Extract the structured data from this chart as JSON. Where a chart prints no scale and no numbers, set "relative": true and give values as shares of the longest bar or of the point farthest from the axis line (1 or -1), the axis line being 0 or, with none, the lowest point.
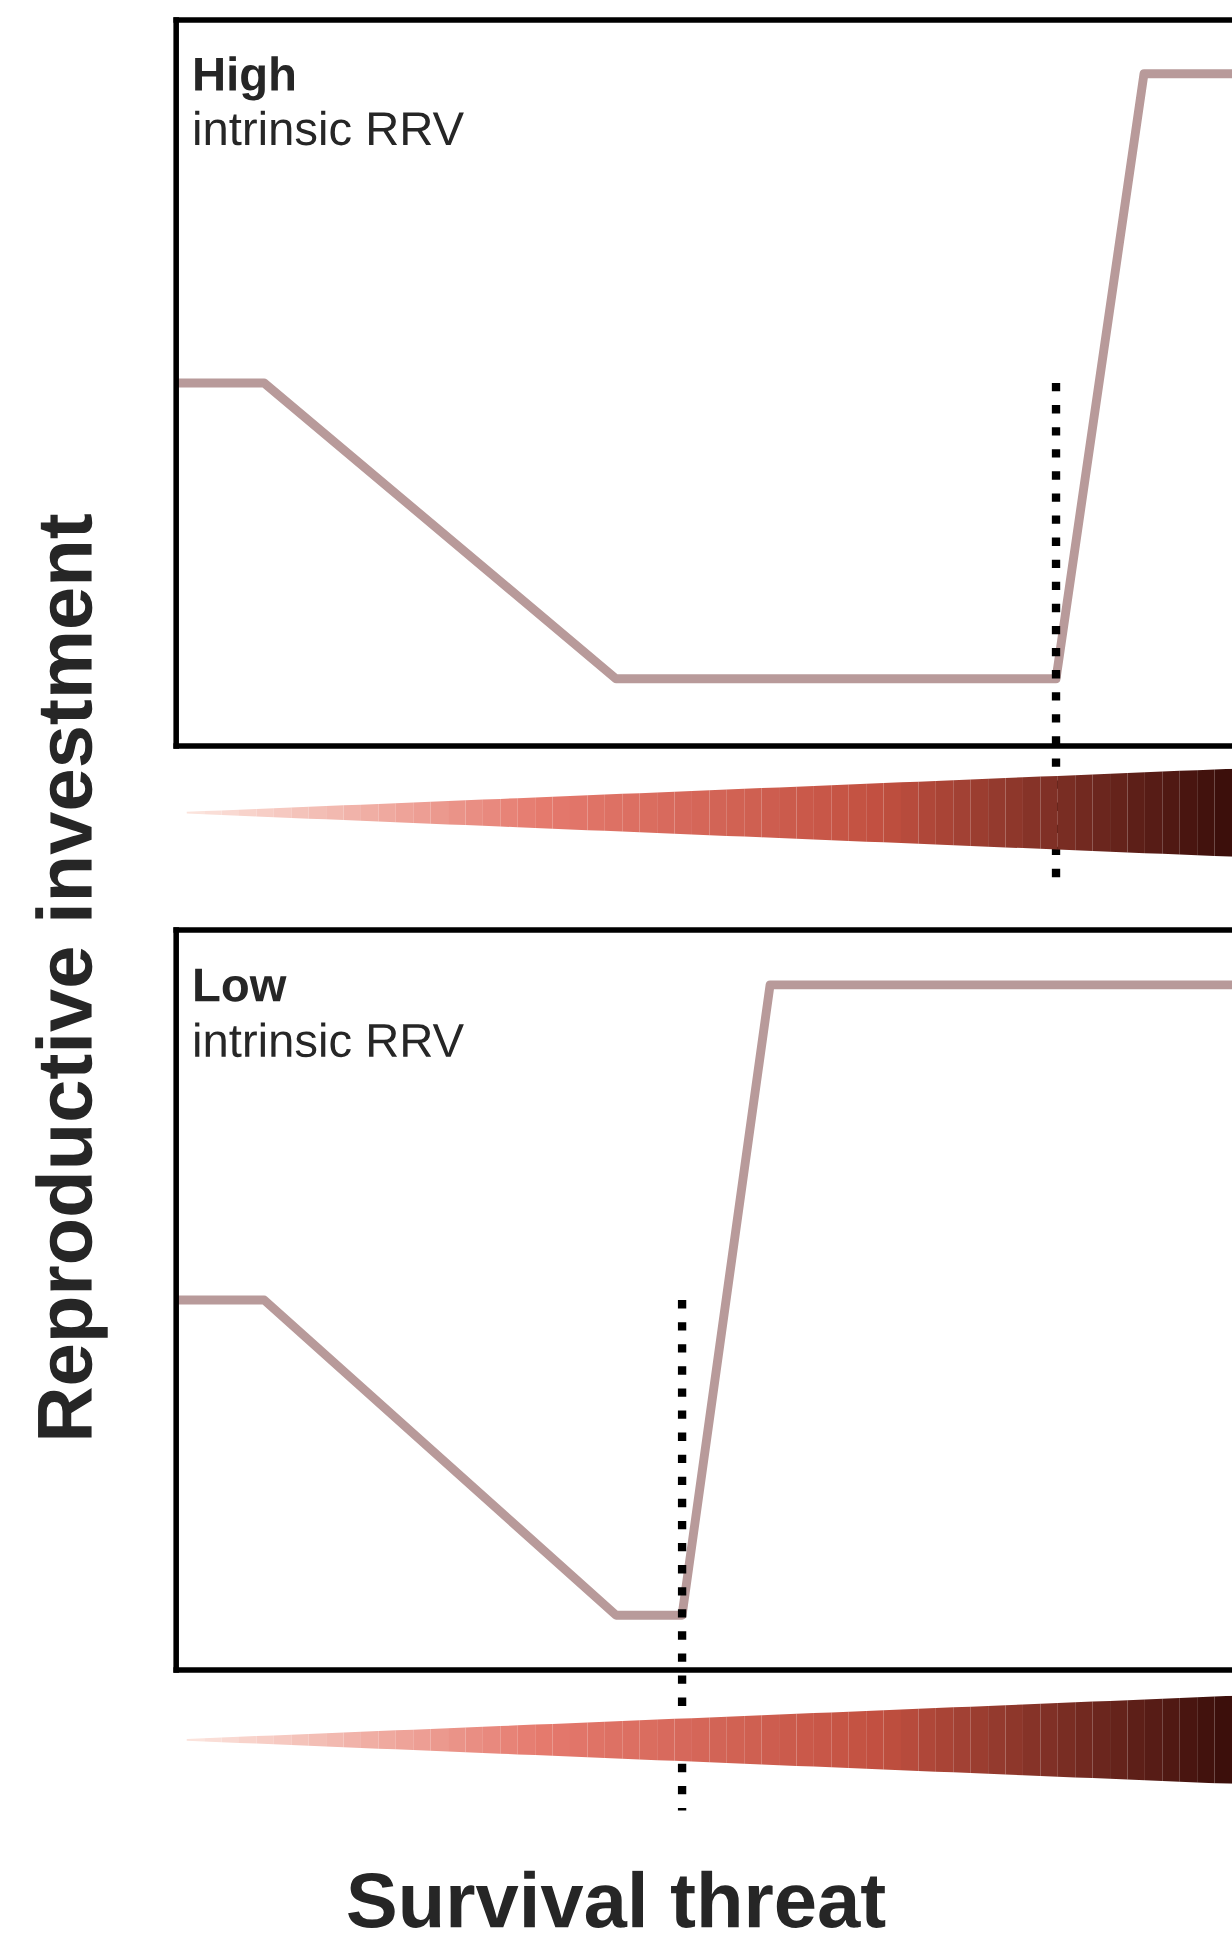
{
  "chart_data": [
    {
      "type": "line",
      "relative": true,
      "ylabel": "Reproductive investment",
      "annotations": [
        "High",
        "intrinsic RRV"
      ],
      "categories": [
        null,
        null,
        null,
        null,
        null,
        null,
        null,
        null,
        null,
        null,
        null,
        null,
        null,
        null,
        null,
        null,
        null,
        null,
        null,
        null,
        null,
        null,
        null,
        null,
        null,
        null,
        null,
        null,
        null,
        null,
        null,
        null,
        null,
        null,
        null,
        null,
        null,
        null,
        null,
        null,
        null,
        null,
        null,
        null,
        null,
        null,
        null,
        null,
        null
      ],
      "series": [
        {
          "color": "#b89a9a",
          "values": [
            0.54,
            null,
            null,
            null,
            0.54,
            null,
            null,
            null,
            null,
            null,
            null,
            null,
            null,
            null,
            null,
            null,
            null,
            null,
            null,
            null,
            0.1,
            null,
            null,
            null,
            null,
            null,
            null,
            null,
            null,
            null,
            null,
            null,
            null,
            null,
            null,
            null,
            null,
            null,
            null,
            null,
            0.1,
            null,
            null,
            null,
            1,
            null,
            null,
            null,
            1
          ]
        }
      ],
      "line_style": "solid"
    },
    {
      "type": "line",
      "relative": true,
      "xlabel": "Survival threat",
      "annotations": [
        "Low",
        "intrinsic RRV"
      ],
      "categories": [
        null,
        null,
        null,
        null,
        null,
        null,
        null,
        null,
        null,
        null,
        null,
        null,
        null,
        null,
        null,
        null,
        null,
        null,
        null,
        null,
        null,
        null,
        null,
        null,
        null,
        null,
        null,
        null,
        null,
        null,
        null,
        null,
        null,
        null,
        null,
        null,
        null,
        null,
        null,
        null,
        null,
        null,
        null,
        null,
        null,
        null,
        null,
        null,
        null
      ],
      "series": [
        {
          "color": "#b89a9a",
          "values": [
            0.54,
            null,
            null,
            null,
            0.54,
            null,
            null,
            null,
            null,
            null,
            null,
            null,
            null,
            null,
            null,
            null,
            null,
            null,
            null,
            null,
            0.08,
            null,
            null,
            0.08,
            null,
            null,
            null,
            1,
            null,
            null,
            null,
            null,
            null,
            null,
            null,
            null,
            null,
            null,
            null,
            null,
            null,
            null,
            null,
            null,
            null,
            null,
            null,
            null,
            1
          ]
        }
      ],
      "line_style": "solid"
    }
  ]
}
